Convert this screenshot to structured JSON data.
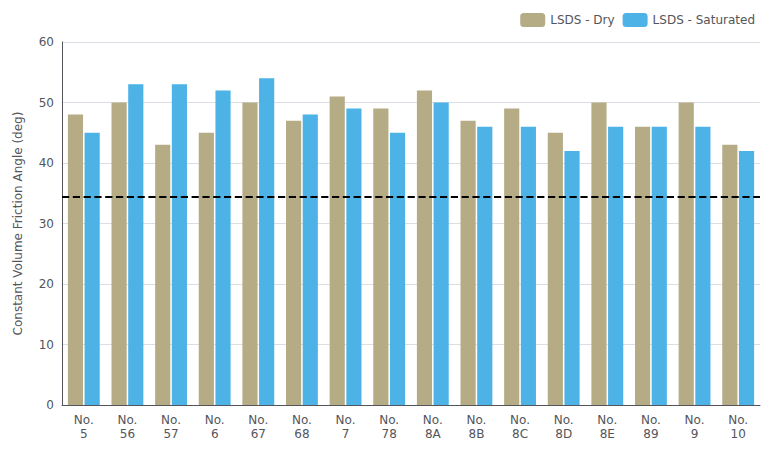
{
  "chart_data": {
    "type": "bar",
    "categories": [
      "No.\n5",
      "No.\n56",
      "No.\n57",
      "No.\n6",
      "No.\n67",
      "No.\n68",
      "No.\n7",
      "No.\n78",
      "No.\n8A",
      "No.\n8B",
      "No.\n8C",
      "No.\n8D",
      "No.\n8E",
      "No.\n89",
      "No.\n9",
      "No.\n10"
    ],
    "series": [
      {
        "name": "LSDS - Dry",
        "color": "#B5AC86",
        "values": [
          48,
          50,
          43,
          45,
          50,
          47,
          51,
          49,
          52,
          47,
          49,
          45,
          50,
          46,
          50,
          43
        ]
      },
      {
        "name": "LSDS - Saturated",
        "color": "#4DB3E6",
        "values": [
          45,
          53,
          53,
          52,
          54,
          48,
          49,
          45,
          50,
          46,
          46,
          42,
          46,
          46,
          46,
          42
        ]
      }
    ],
    "reference_lines": [
      {
        "y": 34.5,
        "color": "#000000",
        "line_style": "dashed"
      }
    ],
    "ylabel": "Constant Volume Friction Angle (deg)",
    "ylim": [
      0,
      60
    ],
    "yticks": [
      0,
      10,
      20,
      30,
      40,
      50,
      60
    ],
    "grid": true,
    "legend": "upper right"
  }
}
